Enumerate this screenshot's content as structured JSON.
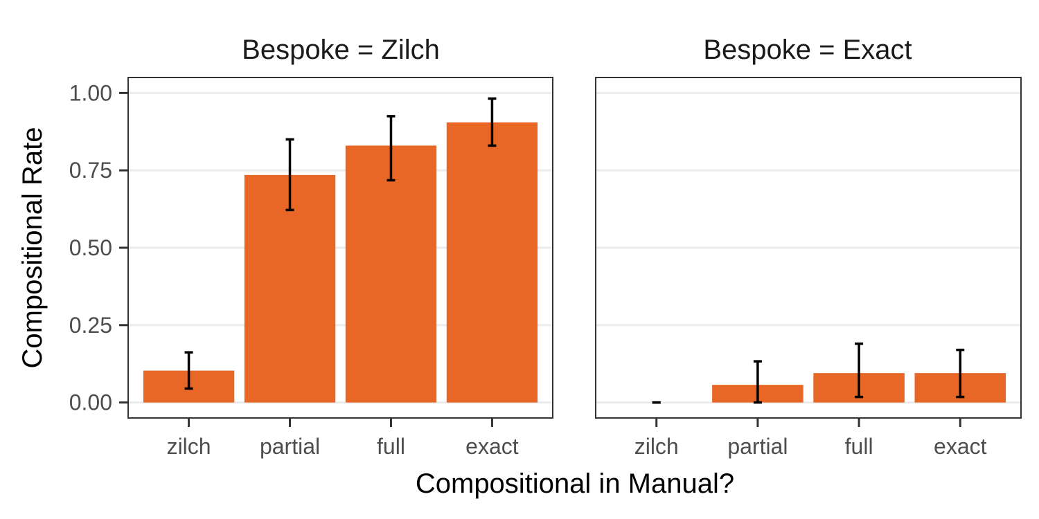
{
  "chart_data": {
    "type": "bar",
    "xlabel": "Compositional in Manual?",
    "ylabel": "Compositional Rate",
    "categories": [
      "zilch",
      "partial",
      "full",
      "exact"
    ],
    "ylim": [
      -0.05,
      1.05
    ],
    "yticks": [
      "0.00",
      "0.25",
      "0.50",
      "0.75",
      "1.00"
    ],
    "bar_color": "#E86726",
    "grid": "horizontal",
    "panels": [
      {
        "strip": "Bespoke = Zilch",
        "values": [
          0.103,
          0.735,
          0.83,
          0.905
        ],
        "err_low": [
          0.045,
          0.622,
          0.718,
          0.83
        ],
        "err_high": [
          0.162,
          0.85,
          0.925,
          0.982
        ]
      },
      {
        "strip": "Bespoke = Exact",
        "values": [
          0.0,
          0.057,
          0.095,
          0.095
        ],
        "err_low": [
          0.0,
          0.0,
          0.018,
          0.018
        ],
        "err_high": [
          0.0,
          0.133,
          0.19,
          0.17
        ]
      }
    ]
  }
}
